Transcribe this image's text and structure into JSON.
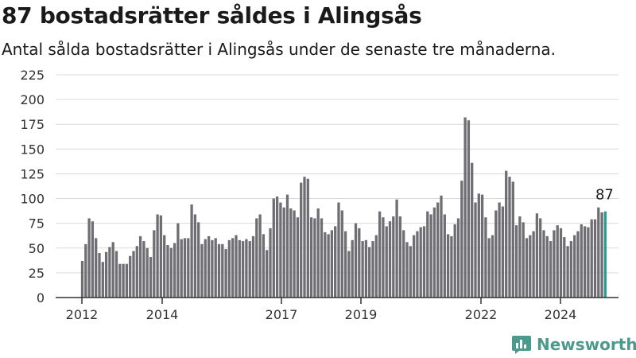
{
  "title": "87 bostadsrätter såldes i Alingsås",
  "subtitle": "Antal sålda bostadsrätter i Alingsås under de senaste tre månaderna.",
  "brand": "Newsworthy",
  "colors": {
    "bar": "#6f6f73",
    "highlight": "#2a9d8f",
    "grid": "#d9d9d9",
    "axis": "#333333",
    "brand": "#4a9b8e"
  },
  "chart_data": {
    "type": "bar",
    "title": "87 bostadsrätter såldes i Alingsås",
    "subtitle": "Antal sålda bostadsrätter i Alingsås under de senaste tre månaderna.",
    "ylim": [
      0,
      225
    ],
    "yticks": [
      0,
      25,
      50,
      75,
      100,
      125,
      150,
      175,
      200,
      225
    ],
    "xtick_labels": [
      "2012",
      "2014",
      "2017",
      "2019",
      "2022",
      "2024"
    ],
    "grid": "horizontal",
    "highlight_label": "87",
    "values": [
      37,
      54,
      80,
      77,
      60,
      45,
      36,
      46,
      51,
      56,
      47,
      34,
      34,
      34,
      42,
      47,
      52,
      62,
      57,
      50,
      41,
      68,
      84,
      83,
      63,
      53,
      50,
      55,
      75,
      59,
      60,
      60,
      94,
      84,
      76,
      54,
      59,
      62,
      58,
      60,
      54,
      54,
      49,
      58,
      60,
      63,
      58,
      57,
      59,
      57,
      62,
      80,
      84,
      64,
      48,
      70,
      100,
      102,
      96,
      91,
      104,
      90,
      88,
      81,
      116,
      122,
      120,
      81,
      80,
      90,
      80,
      66,
      64,
      68,
      72,
      96,
      88,
      67,
      47,
      58,
      75,
      70,
      57,
      58,
      51,
      57,
      63,
      87,
      81,
      72,
      77,
      82,
      99,
      82,
      68,
      56,
      52,
      63,
      67,
      71,
      72,
      87,
      84,
      91,
      96,
      103,
      84,
      64,
      62,
      74,
      80,
      118,
      182,
      179,
      136,
      96,
      105,
      104,
      81,
      60,
      63,
      88,
      96,
      92,
      128,
      122,
      117,
      73,
      82,
      76,
      60,
      63,
      67,
      85,
      80,
      68,
      62,
      57,
      68,
      73,
      70,
      61,
      52,
      57,
      63,
      67,
      74,
      72,
      71,
      79,
      79,
      91,
      86,
      87
    ]
  }
}
